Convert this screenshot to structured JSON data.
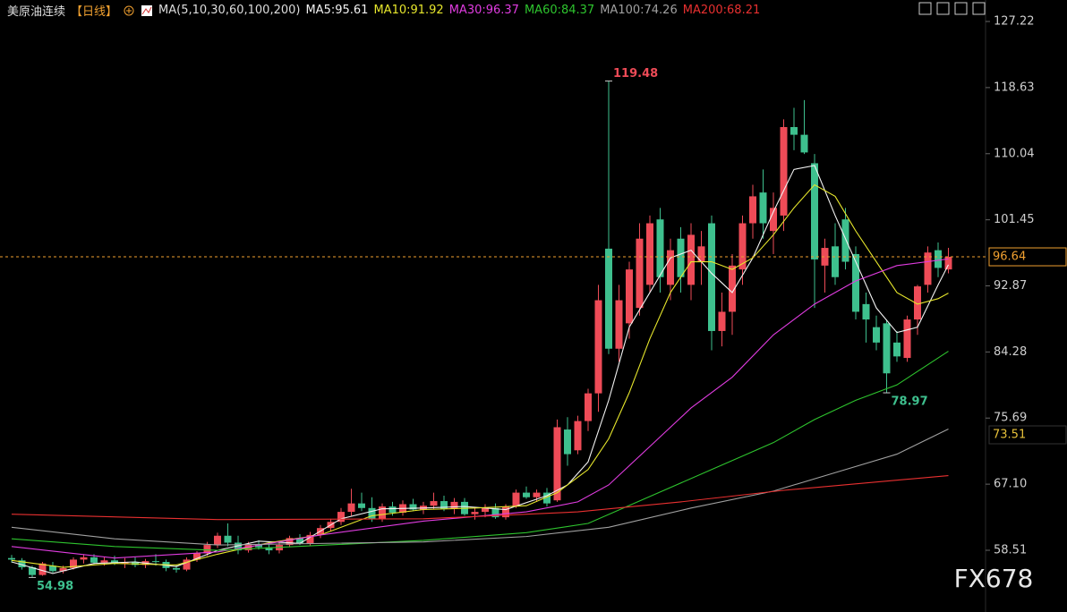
{
  "chart_data": {
    "type": "candlestick",
    "title": "美原油连续",
    "period": "【日线】",
    "indicator": "MA(5,10,30,60,100,200)",
    "watermark": "FX678",
    "up_color": "#ee4b57",
    "down_color": "#3ec08e",
    "ylim": [
      50.49,
      130.01
    ],
    "yticks": [
      127.22,
      118.63,
      110.04,
      101.45,
      92.87,
      84.28,
      75.69,
      {
        "value": 67.1,
        "label": "67.10"
      },
      58.51
    ],
    "grid": false,
    "open": [
      57.5,
      57.2,
      56.3,
      55.3,
      56.5,
      55.8,
      56.2,
      57.3,
      57.6,
      56.9,
      57.2,
      56.8,
      57.0,
      56.6,
      57.1,
      57.0,
      56.2,
      56.0,
      57.3,
      58.1,
      59.2,
      60.4,
      59.5,
      58.5,
      59.3,
      58.9,
      58.5,
      59.2,
      60.1,
      59.4,
      60.5,
      61.4,
      62.2,
      63.5,
      64.6,
      64.0,
      62.6,
      64.2,
      63.4,
      64.5,
      63.8,
      64.3,
      64.9,
      63.9,
      64.8,
      63.2,
      63.5,
      64.0,
      62.8,
      64.2,
      66.0,
      65.4,
      66.0,
      65.0,
      74.2,
      71.5,
      75.3,
      78.9,
      97.7,
      84.7,
      88,
      90,
      93,
      101.5,
      93,
      99,
      93,
      96,
      101,
      87,
      89.5,
      95,
      101,
      105,
      100,
      102,
      113.5,
      112.5,
      108.8,
      95.5,
      98,
      101.5,
      97,
      90.5,
      87.5,
      88,
      85.5,
      83.5,
      88.5,
      93,
      97.5,
      95
    ],
    "high": [
      57.9,
      57.5,
      56.5,
      57.0,
      57.0,
      56.5,
      57.6,
      58.0,
      58.0,
      57.6,
      57.8,
      57.5,
      57.6,
      57.4,
      58.0,
      57.3,
      56.6,
      57.6,
      58.4,
      59.6,
      60.8,
      62.0,
      60.4,
      59.6,
      59.8,
      59.4,
      59.5,
      60.4,
      60.6,
      60.9,
      61.8,
      62.6,
      64.0,
      66.5,
      66.0,
      65.4,
      64.6,
      64.8,
      65.0,
      65.2,
      64.8,
      66.0,
      65.6,
      65.3,
      65.3,
      64.1,
      64.5,
      64.6,
      64.5,
      66.4,
      66.8,
      66.4,
      66.6,
      75.5,
      75.8,
      76,
      79.5,
      93,
      119.48,
      93,
      96,
      101,
      102,
      103,
      99,
      100.5,
      101,
      100,
      102,
      92,
      97,
      102,
      106,
      108,
      105,
      114.5,
      116,
      117,
      110,
      99,
      101,
      103,
      98,
      92,
      89,
      88.5,
      87,
      89,
      93,
      98,
      98.5,
      97.8
    ],
    "low": [
      56.9,
      56.0,
      54.98,
      55.2,
      55.6,
      55.5,
      56.0,
      56.8,
      56.7,
      56.5,
      56.6,
      56.2,
      56.3,
      56.2,
      56.5,
      55.8,
      55.6,
      55.8,
      57.0,
      57.8,
      58.8,
      59.0,
      58.0,
      58.2,
      58.6,
      58.0,
      58.1,
      58.9,
      59.2,
      59.1,
      60.1,
      61.0,
      61.8,
      63.0,
      63.6,
      62.2,
      62.2,
      63.0,
      63.0,
      63.6,
      63.2,
      63.8,
      63.6,
      63.2,
      63.0,
      62.5,
      62.8,
      62.6,
      62.5,
      64.0,
      65.2,
      64.8,
      64.2,
      64.8,
      69.5,
      71,
      74,
      76.5,
      84,
      83,
      86,
      89,
      92,
      92,
      91,
      92,
      91,
      93,
      84.5,
      85,
      86.5,
      93,
      99,
      99,
      97,
      100,
      110.5,
      110,
      90,
      92,
      93,
      95,
      88.5,
      85.5,
      84.5,
      78.97,
      83,
      83,
      86.5,
      92,
      94,
      94.5
    ],
    "close": [
      57.3,
      56.3,
      55.3,
      56.8,
      55.8,
      56.2,
      57.3,
      57.6,
      56.9,
      57.2,
      56.8,
      57.0,
      56.6,
      57.1,
      57.0,
      56.2,
      56.0,
      57.3,
      58.1,
      59.2,
      60.4,
      59.5,
      58.5,
      59.3,
      58.9,
      58.5,
      59.2,
      60.1,
      59.4,
      60.5,
      61.4,
      62.2,
      63.5,
      64.6,
      64.0,
      62.6,
      64.2,
      63.4,
      64.5,
      63.8,
      64.3,
      64.9,
      63.9,
      64.8,
      63.2,
      63.5,
      64.0,
      62.8,
      64.2,
      66.0,
      65.4,
      66.0,
      64.6,
      74.5,
      71,
      75.3,
      78.9,
      91,
      84.7,
      91,
      95,
      99,
      101,
      94,
      97.5,
      94,
      99.5,
      98,
      87,
      89.5,
      95.5,
      101,
      104.5,
      101,
      103,
      113.5,
      112.5,
      110.2,
      96.3,
      97.8,
      94,
      96,
      89.5,
      88.5,
      85.5,
      81.5,
      83.7,
      88.5,
      92.8,
      97.2,
      95.2,
      96.64
    ],
    "series": [
      {
        "name": "MA5:95.61",
        "color": "#f2f2f2",
        "x": [
          0,
          4,
          8,
          12,
          16,
          20,
          24,
          28,
          32,
          36,
          40,
          44,
          48,
          52,
          54,
          56,
          58,
          60,
          62,
          64,
          66,
          68,
          70,
          72,
          74,
          76,
          78,
          80,
          82,
          84,
          86,
          88,
          90,
          91
        ],
        "values": [
          57,
          55.5,
          56.8,
          57,
          56.4,
          58.5,
          59.7,
          59.4,
          62.6,
          63.9,
          64,
          64.2,
          63.8,
          65.6,
          67,
          70,
          78,
          87.5,
          92,
          96.5,
          97.5,
          94.5,
          92,
          96.5,
          102.5,
          108,
          108.5,
          102,
          96,
          90,
          86.8,
          87.5,
          93,
          95.61
        ]
      },
      {
        "name": "MA10:91.92",
        "color": "#e6e62c",
        "x": [
          0,
          5,
          10,
          16,
          20,
          25,
          30,
          35,
          40,
          45,
          50,
          53,
          56,
          58,
          60,
          62,
          64,
          66,
          68,
          70,
          72,
          74,
          76,
          78,
          80,
          82,
          84,
          86,
          88,
          90,
          91
        ],
        "values": [
          57.2,
          56.3,
          56.8,
          56.6,
          58,
          59.5,
          60.5,
          63,
          63.8,
          64,
          64.3,
          66,
          69,
          73,
          79,
          86,
          92,
          96,
          96,
          95,
          96.5,
          99.5,
          103,
          106,
          104.5,
          100,
          96,
          92,
          90.5,
          91.2,
          91.92
        ]
      },
      {
        "name": "MA30:96.37",
        "color": "#e03ce0",
        "x": [
          0,
          10,
          20,
          30,
          40,
          50,
          55,
          58,
          62,
          66,
          70,
          74,
          78,
          82,
          86,
          91
        ],
        "values": [
          59,
          57.5,
          58.3,
          60.5,
          62.3,
          63.5,
          64.8,
          67,
          72,
          77,
          81,
          86.5,
          90.5,
          93.5,
          95.5,
          96.37
        ]
      },
      {
        "name": "MA60:84.37",
        "color": "#2ec42e",
        "x": [
          0,
          10,
          20,
          40,
          50,
          56,
          62,
          68,
          74,
          78,
          82,
          86,
          91
        ],
        "values": [
          60,
          59,
          58.5,
          59.8,
          60.8,
          62,
          65.5,
          69,
          72.5,
          75.5,
          78,
          80,
          84.37
        ]
      },
      {
        "name": "MA100:74.26",
        "color": "#a0a0a0",
        "x": [
          0,
          10,
          20,
          40,
          50,
          58,
          66,
          74,
          80,
          86,
          91
        ],
        "values": [
          61.5,
          60,
          59.2,
          59.6,
          60.3,
          61.5,
          64,
          66.2,
          68.6,
          71,
          74.26
        ]
      },
      {
        "name": "MA200:68.21",
        "color": "#e83030",
        "x": [
          0,
          20,
          40,
          55,
          65,
          75,
          85,
          91
        ],
        "values": [
          63.2,
          62.5,
          62.6,
          63.5,
          64.8,
          66.3,
          67.5,
          68.21
        ]
      }
    ],
    "markers": [
      {
        "value": 73.51,
        "color": "#e6c03a"
      }
    ],
    "last_price_color": "#f0a030"
  }
}
